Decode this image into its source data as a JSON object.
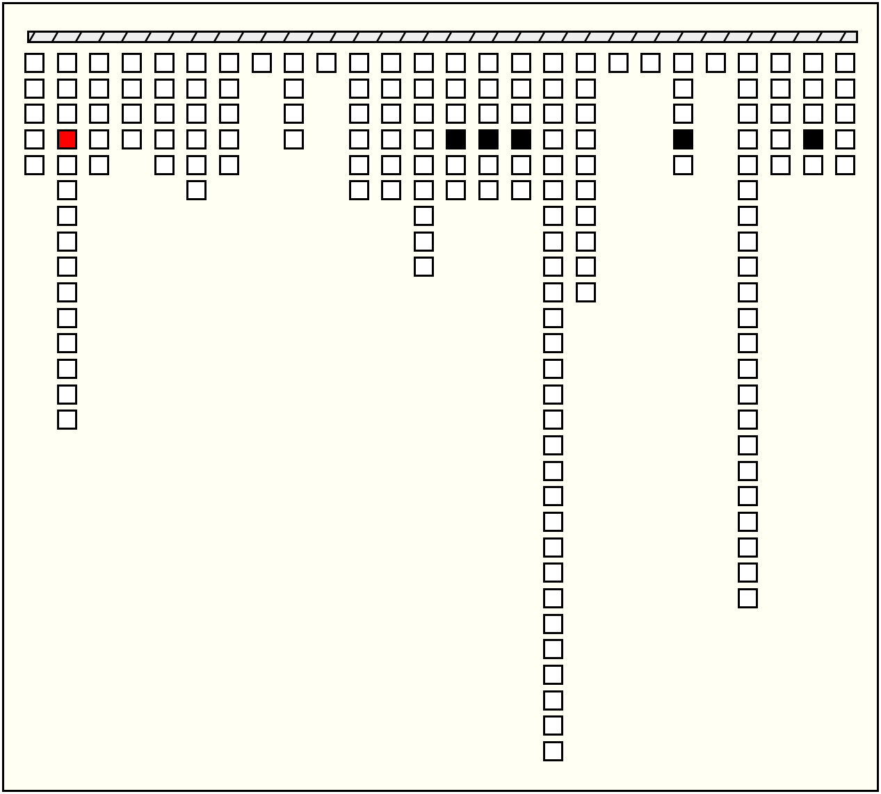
{
  "game": {
    "colors": {
      "background": "#fffff4",
      "box": "#ffffff",
      "border": "#000000",
      "selected": "#ff0000",
      "filled": "#000000"
    },
    "columns": [
      {
        "count": 5
      },
      {
        "count": 15,
        "selected": [
          3
        ]
      },
      {
        "count": 5
      },
      {
        "count": 4
      },
      {
        "count": 5
      },
      {
        "count": 6
      },
      {
        "count": 5
      },
      {
        "count": 1
      },
      {
        "count": 4
      },
      {
        "count": 1
      },
      {
        "count": 6
      },
      {
        "count": 6
      },
      {
        "count": 9
      },
      {
        "count": 6,
        "filled": [
          3
        ]
      },
      {
        "count": 6,
        "filled": [
          3
        ]
      },
      {
        "count": 6,
        "filled": [
          3
        ]
      },
      {
        "count": 28
      },
      {
        "count": 10
      },
      {
        "count": 1
      },
      {
        "count": 1
      },
      {
        "count": 5,
        "filled": [
          3
        ]
      },
      {
        "count": 1
      },
      {
        "count": 22
      },
      {
        "count": 5
      },
      {
        "count": 5,
        "filled": [
          3
        ]
      },
      {
        "count": 5
      }
    ]
  }
}
